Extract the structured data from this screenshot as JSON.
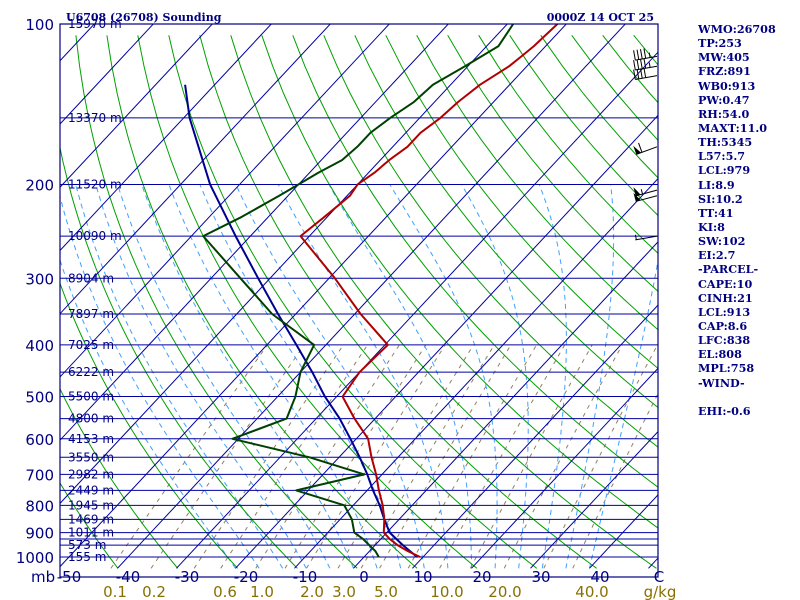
{
  "header": {
    "station": "U6708 (26708) Sounding",
    "time": "0000Z 14 OCT 25"
  },
  "indices": [
    "WMO:26708",
    "TP:253",
    "MW:405",
    "FRZ:891",
    "WB0:913",
    "PW:0.47",
    "RH:54.0",
    "MAXT:11.0",
    "TH:5345",
    "L57:5.7",
    "LCL:979",
    "LI:8.9",
    "SI:10.2",
    "TT:41",
    "KI:8",
    "SW:102",
    "EI:2.7",
    "-PARCEL-",
    "CAPE:10",
    "CINH:21",
    "LCL:913",
    "CAP:8.6",
    "LFC:838",
    "EL:808",
    "MPL:758",
    "-WIND-",
    "",
    "EHI:-0.6"
  ],
  "colors": {
    "frame": "#000080",
    "isobar": "#0000a0",
    "isotherm": "#0000a0",
    "dry_adiabat": "#00a000",
    "moist_adiabat": "#40a0ff",
    "mixing_ratio": "#908060",
    "temperature": "#b00000",
    "dewpoint": "#004000",
    "parcel": "#000090"
  },
  "chart_data": {
    "type": "skew-t log-p sounding",
    "pressure_unit": "mb",
    "temperature_unit": "C",
    "mixing_ratio_unit": "g/kg",
    "isobars": [
      100,
      150,
      200,
      250,
      300,
      350,
      400,
      450,
      500,
      550,
      600,
      650,
      700,
      750,
      800,
      850,
      900,
      925,
      950,
      1000
    ],
    "pressure_labels": [
      "100",
      "200",
      "300",
      "400",
      "500",
      "600",
      "700",
      "800",
      "900",
      "1000"
    ],
    "pressure_label_values": [
      100,
      200,
      300,
      400,
      500,
      600,
      700,
      800,
      900,
      1000
    ],
    "height_labels": [
      {
        "p": 100,
        "text": "15970 m"
      },
      {
        "p": 150,
        "text": "13370 m"
      },
      {
        "p": 200,
        "text": "11520 m"
      },
      {
        "p": 250,
        "text": "10090 m"
      },
      {
        "p": 300,
        "text": "8904 m"
      },
      {
        "p": 350,
        "text": "7897 m"
      },
      {
        "p": 400,
        "text": "7025 m"
      },
      {
        "p": 450,
        "text": "6222 m"
      },
      {
        "p": 500,
        "text": "5500 m"
      },
      {
        "p": 550,
        "text": "4800 m"
      },
      {
        "p": 600,
        "text": "4153 m"
      },
      {
        "p": 650,
        "text": "3550 m"
      },
      {
        "p": 700,
        "text": "2982 m"
      },
      {
        "p": 750,
        "text": "2449 m"
      },
      {
        "p": 800,
        "text": "1945 m"
      },
      {
        "p": 850,
        "text": "1469 m"
      },
      {
        "p": 900,
        "text": "1011 m"
      },
      {
        "p": 950,
        "text": "573 m"
      },
      {
        "p": 1000,
        "text": "155 m"
      }
    ],
    "temperature_ticks": [
      {
        "t": -50,
        "text": "-50"
      },
      {
        "t": -40,
        "text": "-40"
      },
      {
        "t": -30,
        "text": "-30"
      },
      {
        "t": -20,
        "text": "-20"
      },
      {
        "t": -10,
        "text": "-10"
      },
      {
        "t": 0,
        "text": "0"
      },
      {
        "t": 10,
        "text": "10"
      },
      {
        "t": 20,
        "text": "20"
      },
      {
        "t": 30,
        "text": "30"
      },
      {
        "t": 40,
        "text": "40"
      }
    ],
    "temperature_unit_label": "C",
    "pressure_unit_label": "mb",
    "mixing_ratio_ticks": [
      {
        "w": 0.1,
        "text": "0.1"
      },
      {
        "w": 0.2,
        "text": "0.2"
      },
      {
        "w": 0.6,
        "text": "0.6"
      },
      {
        "w": 1.0,
        "text": "1.0"
      },
      {
        "w": 2.0,
        "text": "2.0"
      },
      {
        "w": 3.0,
        "text": "3.0"
      },
      {
        "w": 5.0,
        "text": "5.0"
      },
      {
        "w": 10.0,
        "text": "10.0"
      },
      {
        "w": 20.0,
        "text": "20.0"
      },
      {
        "w": 40.0,
        "text": "40.0"
      }
    ],
    "mixing_ratio_unit_label": "g/kg",
    "temperature_profile": [
      [
        1000,
        9.5
      ],
      [
        975,
        6.5
      ],
      [
        950,
        3.8
      ],
      [
        925,
        1.5
      ],
      [
        900,
        -0.5
      ],
      [
        850,
        -2.5
      ],
      [
        800,
        -5.0
      ],
      [
        750,
        -8.0
      ],
      [
        700,
        -11.0
      ],
      [
        650,
        -14.5
      ],
      [
        600,
        -18.0
      ],
      [
        550,
        -23.5
      ],
      [
        500,
        -29.0
      ],
      [
        450,
        -30.0
      ],
      [
        400,
        -29.5
      ],
      [
        350,
        -39.0
      ],
      [
        300,
        -49.0
      ],
      [
        250,
        -61.5
      ],
      [
        230,
        -60.5
      ],
      [
        210,
        -59.5
      ],
      [
        200,
        -60.0
      ],
      [
        190,
        -59.0
      ],
      [
        180,
        -58.5
      ],
      [
        170,
        -57.5
      ],
      [
        160,
        -57.5
      ],
      [
        150,
        -56.5
      ],
      [
        140,
        -56.0
      ],
      [
        130,
        -55.0
      ],
      [
        120,
        -53.0
      ],
      [
        115,
        -52.5
      ],
      [
        110,
        -52.0
      ],
      [
        100,
        -51.5
      ]
    ],
    "dewpoint_profile": [
      [
        1000,
        2.5
      ],
      [
        975,
        1.0
      ],
      [
        950,
        -1.0
      ],
      [
        925,
        -3.0
      ],
      [
        900,
        -5.5
      ],
      [
        850,
        -8.0
      ],
      [
        800,
        -11.5
      ],
      [
        750,
        -22.0
      ],
      [
        700,
        -13.0
      ],
      [
        650,
        -25.0
      ],
      [
        600,
        -41.0
      ],
      [
        550,
        -35.0
      ],
      [
        500,
        -37.0
      ],
      [
        450,
        -40.0
      ],
      [
        400,
        -42.0
      ],
      [
        350,
        -54.0
      ],
      [
        300,
        -65.0
      ],
      [
        250,
        -78.0
      ],
      [
        230,
        -74.5
      ],
      [
        210,
        -71.5
      ],
      [
        200,
        -70.0
      ],
      [
        190,
        -68.5
      ],
      [
        180,
        -66.5
      ],
      [
        170,
        -66.0
      ],
      [
        160,
        -66.0
      ],
      [
        150,
        -65.0
      ],
      [
        140,
        -63.5
      ],
      [
        130,
        -63.0
      ],
      [
        120,
        -60.5
      ],
      [
        110,
        -58.0
      ],
      [
        100,
        -59.0
      ]
    ],
    "parcel_profile": [
      [
        1000,
        9.0
      ],
      [
        950,
        4.7
      ],
      [
        900,
        0.5
      ],
      [
        850,
        -2.5
      ],
      [
        800,
        -5.5
      ],
      [
        750,
        -9.0
      ],
      [
        700,
        -12.5
      ],
      [
        650,
        -16.5
      ],
      [
        600,
        -21.0
      ],
      [
        550,
        -26.0
      ],
      [
        500,
        -32.0
      ],
      [
        450,
        -38.0
      ],
      [
        400,
        -45.0
      ],
      [
        350,
        -53.0
      ],
      [
        300,
        -62.0
      ],
      [
        250,
        -72.5
      ],
      [
        200,
        -85.0
      ],
      [
        150,
        -99.0
      ],
      [
        130,
        -105.0
      ]
    ],
    "wind_barbs": [
      {
        "p": 115,
        "dir": 260,
        "speed": 45
      },
      {
        "p": 120,
        "dir": 260,
        "speed": 45
      },
      {
        "p": 125,
        "dir": 260,
        "speed": 40
      },
      {
        "p": 170,
        "dir": 250,
        "speed": 60
      },
      {
        "p": 205,
        "dir": 255,
        "speed": 55
      },
      {
        "p": 210,
        "dir": 255,
        "speed": 50
      },
      {
        "p": 250,
        "dir": 260,
        "speed": 5
      }
    ],
    "grid": true
  }
}
